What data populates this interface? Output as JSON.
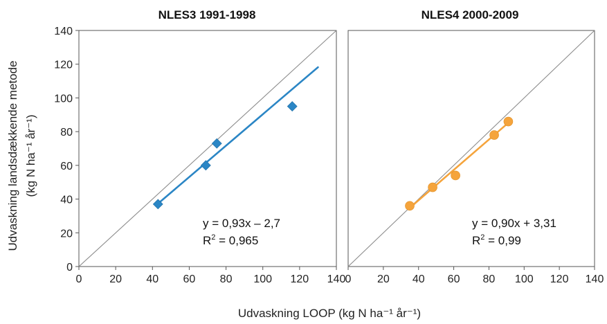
{
  "chart_data": [
    {
      "type": "scatter",
      "title": "NLES3 1991-1998",
      "xlabel": "Udvaskning LOOP (kg N ha⁻¹ år⁻¹)",
      "ylabel_line1": "Udvaskning landsdækkende metode",
      "ylabel_line2": "(kg N ha⁻¹ år⁻¹)",
      "xlim": [
        0,
        140
      ],
      "ylim": [
        0,
        140
      ],
      "xticks": [
        "0",
        "20",
        "40",
        "60",
        "80",
        "100",
        "120",
        "140"
      ],
      "yticks": [
        "0",
        "20",
        "40",
        "60",
        "80",
        "100",
        "120",
        "140"
      ],
      "color": "#2b86c5",
      "marker": "diamond",
      "points": [
        {
          "x": 43,
          "y": 37
        },
        {
          "x": 69,
          "y": 60
        },
        {
          "x": 75,
          "y": 73
        },
        {
          "x": 116,
          "y": 95
        }
      ],
      "fit_line": {
        "x_start": 43,
        "x_end": 130,
        "slope": 0.93,
        "intercept": -2.7
      },
      "identity_line": true,
      "equation": "y = 0,93x – 2,7",
      "r2_label": "R",
      "r2_sup": "2",
      "r2_value": " = 0,965"
    },
    {
      "type": "scatter",
      "title": "NLES4 2000-2009",
      "xlim": [
        0,
        140
      ],
      "ylim": [
        0,
        140
      ],
      "xticks": [
        "0",
        "20",
        "40",
        "60",
        "80",
        "100",
        "120",
        "140"
      ],
      "color": "#f5a43c",
      "marker": "circle",
      "points": [
        {
          "x": 35,
          "y": 36
        },
        {
          "x": 48,
          "y": 47
        },
        {
          "x": 61,
          "y": 54
        },
        {
          "x": 83,
          "y": 78
        },
        {
          "x": 91,
          "y": 86
        }
      ],
      "fit_line": {
        "x_start": 35,
        "x_end": 91,
        "slope": 0.9,
        "intercept": 3.31
      },
      "identity_line": true,
      "equation": "y = 0,90x + 3,31",
      "r2_label": "R",
      "r2_sup": "2",
      "r2_value": " = 0,99"
    }
  ]
}
